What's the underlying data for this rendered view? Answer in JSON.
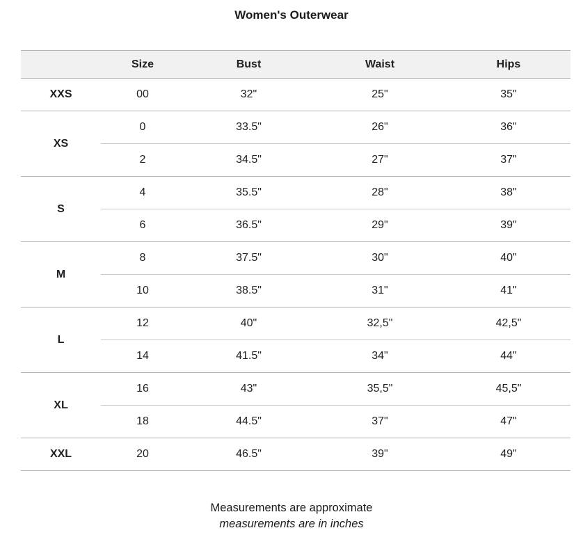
{
  "title": "Women's Outerwear",
  "table": {
    "headers": [
      "",
      "Size",
      "Bust",
      "Waist",
      "Hips"
    ],
    "column_keys": [
      "size",
      "bust",
      "waist",
      "hips"
    ],
    "groups": [
      {
        "label": "XXS",
        "rows": [
          [
            "00",
            "32\"",
            "25\"",
            "35\""
          ]
        ]
      },
      {
        "label": "XS",
        "rows": [
          [
            "0",
            "33.5\"",
            "26\"",
            "36\""
          ],
          [
            "2",
            "34.5\"",
            "27\"",
            "37\""
          ]
        ]
      },
      {
        "label": "S",
        "rows": [
          [
            "4",
            "35.5\"",
            "28\"",
            "38\""
          ],
          [
            "6",
            "36.5\"",
            "29\"",
            "39\""
          ]
        ]
      },
      {
        "label": "M",
        "rows": [
          [
            "8",
            "37.5\"",
            "30\"",
            "40\""
          ],
          [
            "10",
            "38.5\"",
            "31\"",
            "41\""
          ]
        ]
      },
      {
        "label": "L",
        "rows": [
          [
            "12",
            "40\"",
            "32,5\"",
            "42,5\""
          ],
          [
            "14",
            "41.5\"",
            "34\"",
            "44\""
          ]
        ]
      },
      {
        "label": "XL",
        "rows": [
          [
            "16",
            "43\"",
            "35,5\"",
            "45,5\""
          ],
          [
            "18",
            "44.5\"",
            "37\"",
            "47\""
          ]
        ]
      },
      {
        "label": "XXL",
        "rows": [
          [
            "20",
            "46.5\"",
            "39\"",
            "49\""
          ]
        ]
      }
    ]
  },
  "footer": {
    "line1": "Measurements are approximate",
    "line2": "measurements are in inches"
  },
  "colors": {
    "header_bg": "#f1f1f1",
    "border_strong": "#b3b3b3",
    "border_light": "#c6c6c6",
    "text": "#202124"
  }
}
